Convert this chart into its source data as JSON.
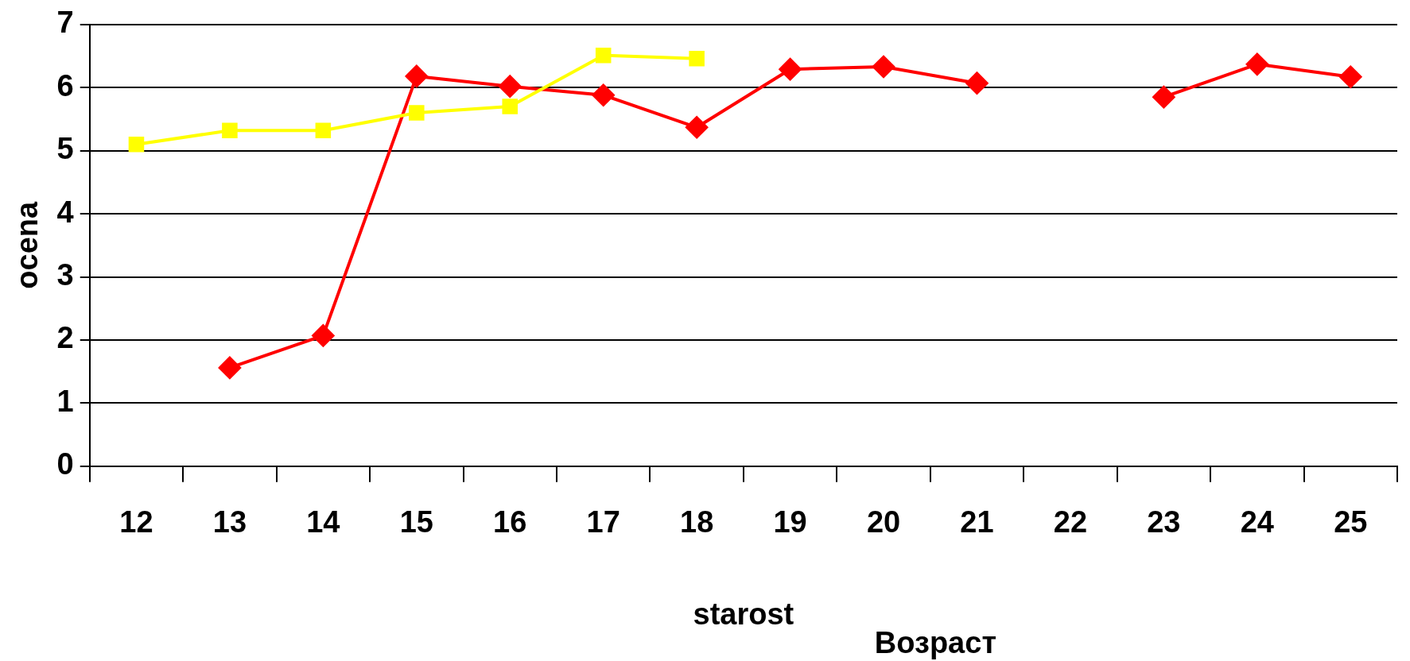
{
  "chart_data": {
    "type": "line",
    "xlabel": "starost",
    "ylabel": "ocena",
    "annotations": [
      "Возраст"
    ],
    "categories": [
      "12",
      "13",
      "14",
      "15",
      "16",
      "17",
      "18",
      "19",
      "20",
      "21",
      "22",
      "23",
      "24",
      "25"
    ],
    "series": [
      {
        "color": "#ffff00",
        "marker": "square",
        "values": [
          5.1,
          5.32,
          5.32,
          5.6,
          5.7,
          6.51,
          6.46,
          null,
          null,
          null,
          null,
          null,
          null,
          null
        ]
      },
      {
        "color": "#ff0000",
        "marker": "diamond",
        "values": [
          null,
          1.56,
          2.07,
          6.18,
          6.02,
          5.88,
          5.37,
          6.29,
          6.33,
          6.07,
          null,
          5.85,
          6.37,
          6.17
        ]
      }
    ],
    "ylim": [
      0,
      7
    ],
    "yticks": [
      0,
      1,
      2,
      3,
      4,
      5,
      6,
      7
    ],
    "grid": "y",
    "legend": false,
    "line_style": "solid"
  }
}
